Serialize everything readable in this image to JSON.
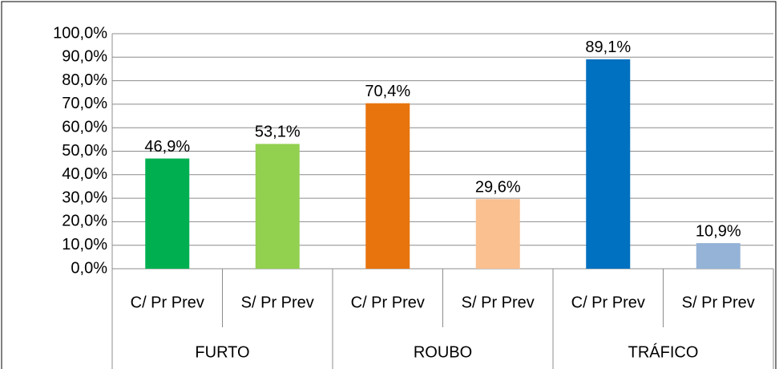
{
  "chart_data": {
    "type": "bar",
    "categories": [
      "C/ Pr Prev",
      "S/ Pr Prev",
      "C/ Pr Prev",
      "S/ Pr Prev",
      "C/ Pr Prev",
      "S/ Pr Prev"
    ],
    "groups": [
      "FURTO",
      "ROUBO",
      "TRÁFICO"
    ],
    "values": [
      46.9,
      53.1,
      70.4,
      29.6,
      89.1,
      10.9
    ],
    "value_labels": [
      "46,9%",
      "53,1%",
      "70,4%",
      "29,6%",
      "89,1%",
      "10,9%"
    ],
    "colors": [
      "#00b050",
      "#92d050",
      "#e8740e",
      "#fac090",
      "#0070c0",
      "#95b3d7"
    ],
    "ylim": [
      0,
      100
    ],
    "yticks": [
      {
        "value": 0,
        "label": "0,0%"
      },
      {
        "value": 10,
        "label": "10,0%"
      },
      {
        "value": 20,
        "label": "20,0%"
      },
      {
        "value": 30,
        "label": "30,0%"
      },
      {
        "value": 40,
        "label": "40,0%"
      },
      {
        "value": 50,
        "label": "50,0%"
      },
      {
        "value": 60,
        "label": "60,0%"
      },
      {
        "value": 70,
        "label": "70,0%"
      },
      {
        "value": 80,
        "label": "80,0%"
      },
      {
        "value": 90,
        "label": "90,0%"
      },
      {
        "value": 100,
        "label": "100,0%"
      }
    ],
    "grid": true
  }
}
